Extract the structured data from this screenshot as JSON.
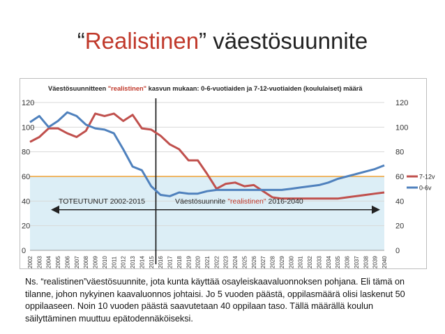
{
  "slide": {
    "title_open_quote": "“",
    "title_accent": "Realistinen",
    "title_rest": "” väestösuunnite"
  },
  "caption": "Ns. “realistinen”väestösuunnite, jota kunta käyttää osayleiskaavaluonnoksen pohjana. Eli tämä on tilanne, johon nykyinen kaavaluonnos johtaisi. Jo 5 vuoden päästä, oppilasmäärä olisi laskenut 50 oppilaaseen. Noin 10 vuoden päästä saavutetaan 40 oppilaan taso. Tällä määrällä koulun säilyttäminen muuttuu epätodennäköiseksi.",
  "chart_data": {
    "type": "line",
    "title_part1": "Väestösuunnitteen ",
    "title_part2": "\"realistinen\"",
    "title_part3": " kasvun mukaan: 0-6-vuotiaiden ja 7-12-vuotiaiden (koululaiset) määrä",
    "categories": [
      "2002",
      "2003",
      "2004",
      "2005",
      "2006",
      "2007",
      "2008",
      "2009",
      "2010",
      "2011",
      "2012",
      "2013",
      "2014",
      "2015",
      "2016",
      "2017",
      "2018",
      "2019",
      "2020",
      "2021",
      "2022",
      "2023",
      "2024",
      "2025",
      "2026",
      "2027",
      "2028",
      "2029",
      "2030",
      "2031",
      "2032",
      "2033",
      "2034",
      "2035",
      "2036",
      "2037",
      "2038",
      "2039",
      "2040"
    ],
    "series": [
      {
        "name": "7-12v",
        "color": "#c0504d",
        "values": [
          88,
          92,
          99,
          99,
          95,
          92,
          97,
          111,
          109,
          111,
          105,
          110,
          99,
          98,
          93,
          86,
          82,
          73,
          73,
          62,
          50,
          54,
          55,
          52,
          53,
          48,
          43,
          42,
          42,
          42,
          42,
          42,
          42,
          42,
          43,
          44,
          45,
          46,
          47
        ]
      },
      {
        "name": "0-6v",
        "color": "#4f81bd",
        "values": [
          104,
          109,
          100,
          105,
          112,
          109,
          102,
          99,
          98,
          95,
          82,
          68,
          65,
          52,
          45,
          44,
          47,
          46,
          46,
          48,
          49,
          49,
          49,
          49,
          49,
          49,
          49,
          49,
          50,
          51,
          52,
          53,
          55,
          58,
          60,
          62,
          64,
          66,
          69
        ]
      }
    ],
    "ylim": [
      0,
      120
    ],
    "yticks": [
      0,
      20,
      40,
      60,
      80,
      100,
      120
    ],
    "threshold_value": 60,
    "threshold_color": "#f0a030",
    "shade_color": "#dceef6",
    "divider_year": "2016",
    "annotation_left": "TOTEUTUNUT 2002-2015",
    "annotation_right_part1": "Väestösuunnite ",
    "annotation_right_part2": "\"realistinen\"",
    "annotation_right_part3": " 2016-2040",
    "grid": true,
    "legend_position": "right"
  }
}
